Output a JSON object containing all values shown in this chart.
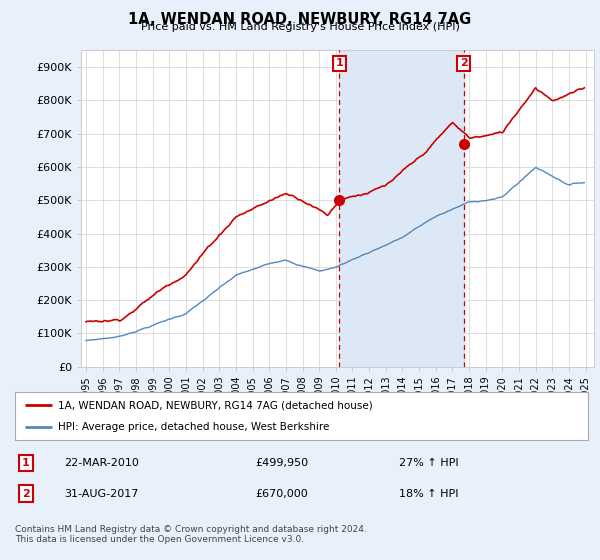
{
  "title": "1A, WENDAN ROAD, NEWBURY, RG14 7AG",
  "subtitle": "Price paid vs. HM Land Registry's House Price Index (HPI)",
  "background_color": "#e8f0fb",
  "plot_bg_color": "#ffffff",
  "ylim": [
    0,
    950000
  ],
  "yticks": [
    0,
    100000,
    200000,
    300000,
    400000,
    500000,
    600000,
    700000,
    800000,
    900000
  ],
  "ytick_labels": [
    "£0",
    "£100K",
    "£200K",
    "£300K",
    "£400K",
    "£500K",
    "£600K",
    "£700K",
    "£800K",
    "£900K"
  ],
  "legend_entry1": "1A, WENDAN ROAD, NEWBURY, RG14 7AG (detached house)",
  "legend_entry2": "HPI: Average price, detached house, West Berkshire",
  "annotation1_label": "1",
  "annotation1_date": "22-MAR-2010",
  "annotation1_price": "£499,950",
  "annotation1_hpi": "27% ↑ HPI",
  "annotation2_label": "2",
  "annotation2_date": "31-AUG-2017",
  "annotation2_price": "£670,000",
  "annotation2_hpi": "18% ↑ HPI",
  "footer": "Contains HM Land Registry data © Crown copyright and database right 2024.\nThis data is licensed under the Open Government Licence v3.0.",
  "red_color": "#cc0000",
  "blue_color": "#5588bb",
  "shade_color": "#dce8f5",
  "marker1_x": 2010.22,
  "marker1_y": 499950,
  "marker2_x": 2017.67,
  "marker2_y": 670000,
  "vline1_x": 2010.22,
  "vline2_x": 2017.67,
  "xmin": 1994.7,
  "xmax": 2025.5,
  "xticks": [
    1995,
    1996,
    1997,
    1998,
    1999,
    2000,
    2001,
    2002,
    2003,
    2004,
    2005,
    2006,
    2007,
    2008,
    2009,
    2010,
    2011,
    2012,
    2013,
    2014,
    2015,
    2016,
    2017,
    2018,
    2019,
    2020,
    2021,
    2022,
    2023,
    2024,
    2025
  ]
}
